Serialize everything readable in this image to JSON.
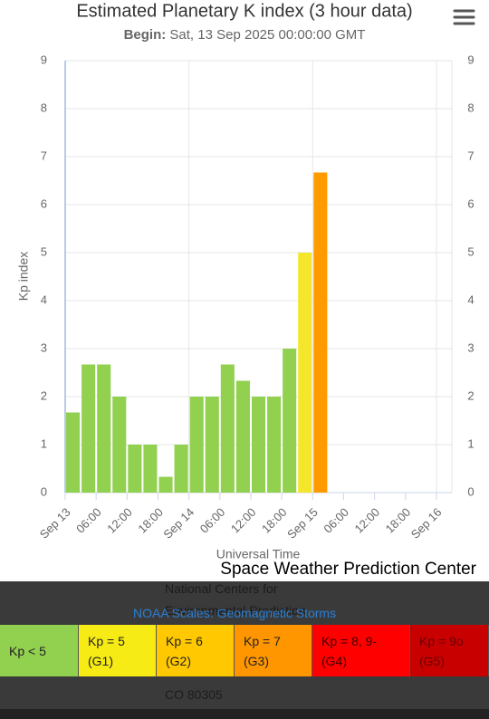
{
  "chart_data": {
    "type": "bar",
    "title": "Estimated Planetary K index (3 hour data)",
    "subtitle_label": "Begin:",
    "subtitle": "Sat, 13 Sep 2025 00:00:00 GMT",
    "y_label": "Kp index",
    "x_label": "Universal Time",
    "x": [
      "2025-09-13T00:00Z",
      "2025-09-13T03:00Z",
      "2025-09-13T06:00Z",
      "2025-09-13T09:00Z",
      "2025-09-13T12:00Z",
      "2025-09-13T15:00Z",
      "2025-09-13T18:00Z",
      "2025-09-13T21:00Z",
      "2025-09-14T00:00Z",
      "2025-09-14T03:00Z",
      "2025-09-14T06:00Z",
      "2025-09-14T09:00Z",
      "2025-09-14T12:00Z",
      "2025-09-14T15:00Z",
      "2025-09-14T18:00Z",
      "2025-09-14T21:00Z",
      "2025-09-15T00:00Z"
    ],
    "values": [
      1.67,
      2.67,
      2.67,
      2,
      1,
      1,
      0.33,
      1,
      2,
      2,
      2.67,
      2.33,
      2,
      2,
      3,
      5,
      6.67
    ],
    "colors": [
      "#92d050",
      "#92d050",
      "#92d050",
      "#92d050",
      "#92d050",
      "#92d050",
      "#92d050",
      "#92d050",
      "#92d050",
      "#92d050",
      "#92d050",
      "#92d050",
      "#92d050",
      "#92d050",
      "#92d050",
      "#f4e62a",
      "#ff9a00"
    ],
    "xlim": [
      "2025-09-13T00:00Z",
      "2025-09-16T03:00Z"
    ],
    "xticks": [
      {
        "value": "2025-09-13T00:00Z",
        "label": "Sep 13"
      },
      {
        "value": "2025-09-13T06:00Z",
        "label": "06:00"
      },
      {
        "value": "2025-09-13T12:00Z",
        "label": "12:00"
      },
      {
        "value": "2025-09-13T18:00Z",
        "label": "18:00"
      },
      {
        "value": "2025-09-14T00:00Z",
        "label": "Sep 14"
      },
      {
        "value": "2025-09-14T06:00Z",
        "label": "06:00"
      },
      {
        "value": "2025-09-14T12:00Z",
        "label": "12:00"
      },
      {
        "value": "2025-09-14T18:00Z",
        "label": "18:00"
      },
      {
        "value": "2025-09-15T00:00Z",
        "label": "Sep 15"
      },
      {
        "value": "2025-09-15T06:00Z",
        "label": "06:00"
      },
      {
        "value": "2025-09-15T12:00Z",
        "label": "12:00"
      },
      {
        "value": "2025-09-15T18:00Z",
        "label": "18:00"
      },
      {
        "value": "2025-09-16T00:00Z",
        "label": "Sep 16"
      }
    ],
    "ylim": [
      0,
      9
    ],
    "yticks": [
      0,
      1,
      2,
      3,
      4,
      5,
      6,
      7,
      8,
      9
    ],
    "y2lim": [
      0,
      9
    ],
    "y2ticks": [
      0,
      1,
      2,
      3,
      4,
      5,
      6,
      7,
      8,
      9
    ],
    "grid": true,
    "color_scale": [
      {
        "label": "Kp < 5",
        "color": "#92d050",
        "text_color": "#222"
      },
      {
        "label": "Kp = 5 (G1)",
        "color": "#f6eb14",
        "text_color": "#222"
      },
      {
        "label": "Kp = 6 (G2)",
        "color": "#ffc800",
        "text_color": "#222"
      },
      {
        "label": "Kp = 7 (G3)",
        "color": "#ff9600",
        "text_color": "#222"
      },
      {
        "label": "Kp = 8, 9- (G4)",
        "color": "#ff0000",
        "text_color": "#3a0000"
      },
      {
        "label": "Kp = 9o (G5)",
        "color": "#c80000",
        "text_color": "#6a0000"
      }
    ]
  },
  "site_name": "Space Weather Prediction Center",
  "footer": {
    "line1": "National Centers for",
    "line2": "Environmental Prediction",
    "link": "NOAA Scales: Geomagnetic Storms",
    "line3": "CO 80305"
  }
}
